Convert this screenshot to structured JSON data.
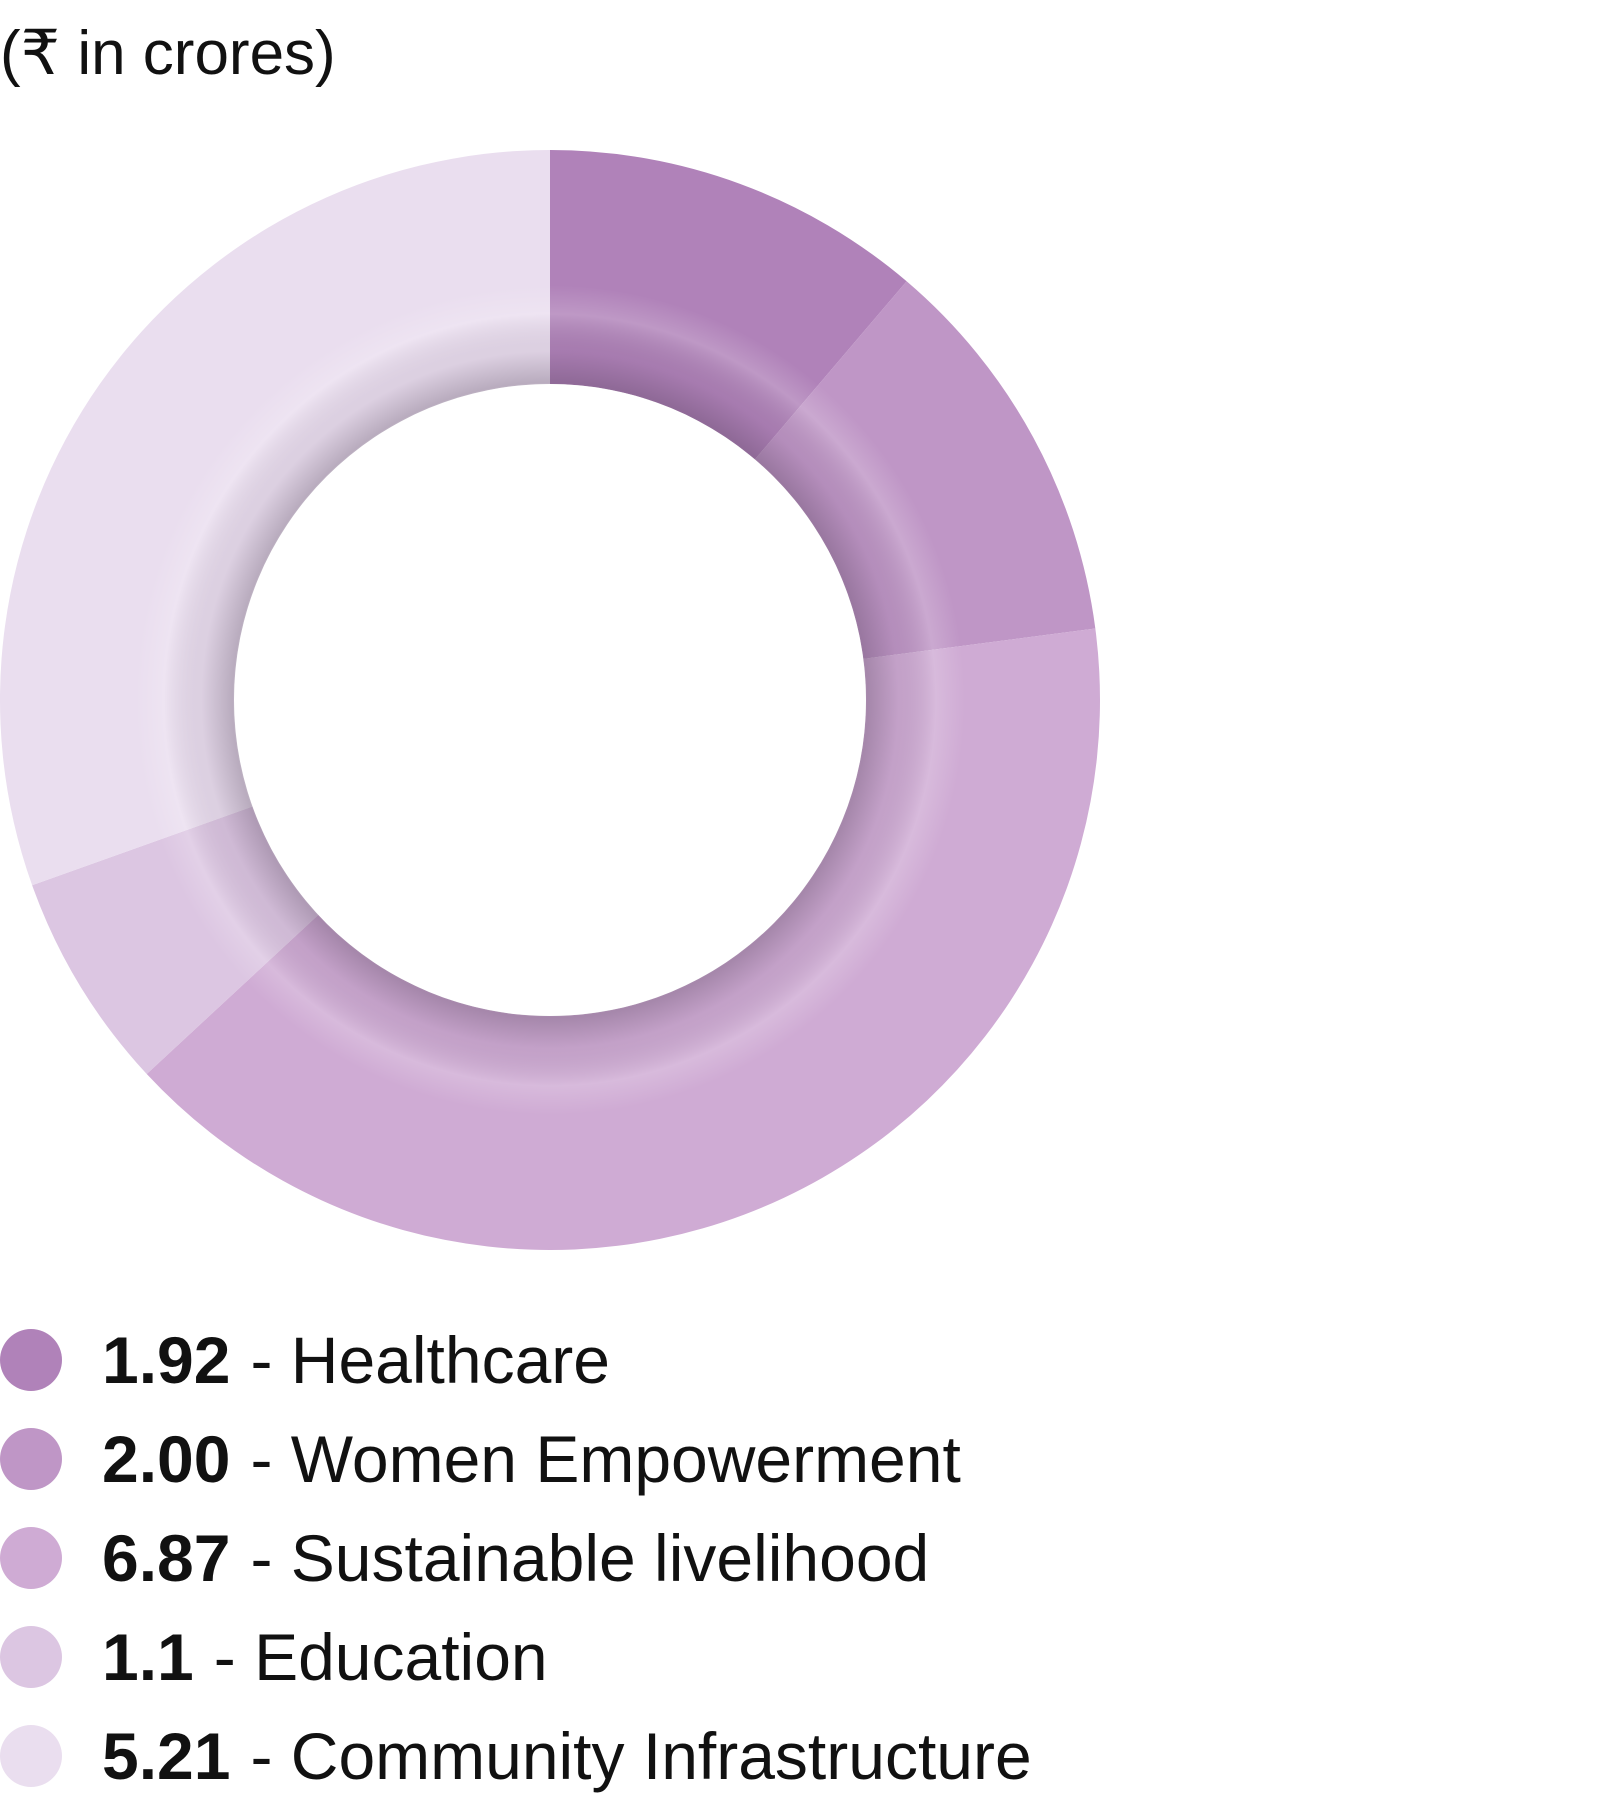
{
  "unit_label": "(₹ in crores)",
  "chart_data": {
    "type": "pie",
    "variant": "donut",
    "title": "",
    "unit": "(₹ in crores)",
    "legend_position": "bottom-left",
    "start_angle": "top (12 o'clock)",
    "direction": "clockwise",
    "slices": [
      {
        "value": 1.92,
        "value_label": "1.92",
        "label": "- Healthcare",
        "color": "#b082b9"
      },
      {
        "value": 2.0,
        "value_label": "2.00",
        "label": "- Women Empowerment",
        "color": "#bf96c6"
      },
      {
        "value": 6.87,
        "value_label": "6.87",
        "label": "- Sustainable livelihood",
        "color": "#cfabd4"
      },
      {
        "value": 1.1,
        "value_label": "1.1",
        "label": "- Education",
        "color": "#dcc6e2"
      },
      {
        "value": 5.21,
        "value_label": "5.21",
        "label": "- Community Infrastructure",
        "color": "#eadeef"
      }
    ]
  }
}
